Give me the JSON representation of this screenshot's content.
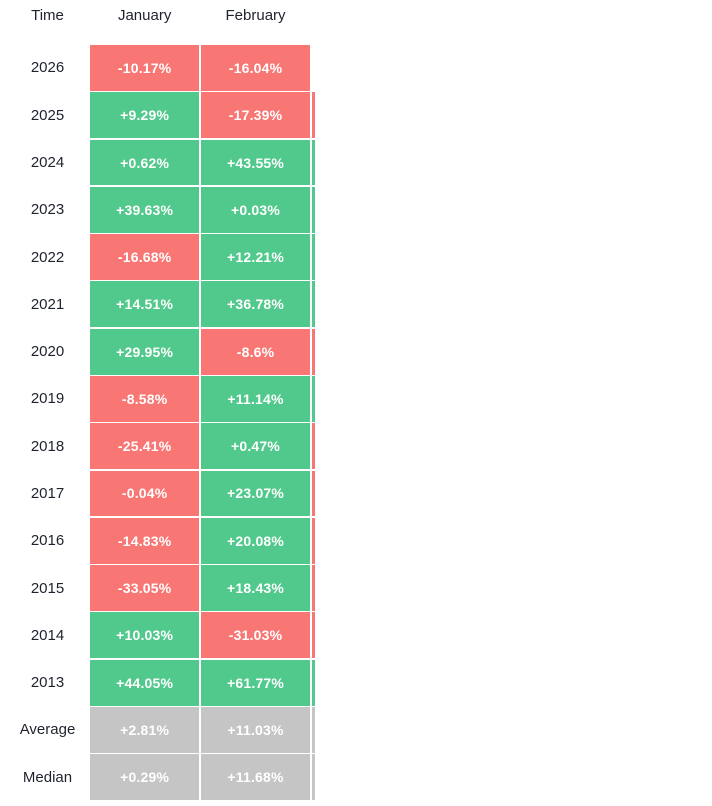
{
  "colors": {
    "positive": "#52c98c",
    "negative": "#f87673",
    "neutral": "#c5c5c5",
    "label_text": "#1e222d",
    "cell_text": "#ffffff",
    "background": "#ffffff"
  },
  "header": {
    "time_label": "Time",
    "columns": [
      "January",
      "February"
    ]
  },
  "rows": [
    {
      "label": "2026",
      "cells": [
        {
          "text": "-10.17%",
          "state": "negative"
        },
        {
          "text": "-16.04%",
          "state": "negative"
        }
      ],
      "next": {
        "state": "none"
      }
    },
    {
      "label": "2025",
      "cells": [
        {
          "text": "+9.29%",
          "state": "positive"
        },
        {
          "text": "-17.39%",
          "state": "negative"
        }
      ],
      "next": {
        "state": "negative"
      }
    },
    {
      "label": "2024",
      "cells": [
        {
          "text": "+0.62%",
          "state": "positive"
        },
        {
          "text": "+43.55%",
          "state": "positive"
        }
      ],
      "next": {
        "state": "positive"
      }
    },
    {
      "label": "2023",
      "cells": [
        {
          "text": "+39.63%",
          "state": "positive"
        },
        {
          "text": "+0.03%",
          "state": "positive"
        }
      ],
      "next": {
        "state": "positive"
      }
    },
    {
      "label": "2022",
      "cells": [
        {
          "text": "-16.68%",
          "state": "negative"
        },
        {
          "text": "+12.21%",
          "state": "positive"
        }
      ],
      "next": {
        "state": "positive"
      }
    },
    {
      "label": "2021",
      "cells": [
        {
          "text": "+14.51%",
          "state": "positive"
        },
        {
          "text": "+36.78%",
          "state": "positive"
        }
      ],
      "next": {
        "state": "positive"
      }
    },
    {
      "label": "2020",
      "cells": [
        {
          "text": "+29.95%",
          "state": "positive"
        },
        {
          "text": "-8.6%",
          "state": "negative"
        }
      ],
      "next": {
        "state": "negative"
      }
    },
    {
      "label": "2019",
      "cells": [
        {
          "text": "-8.58%",
          "state": "negative"
        },
        {
          "text": "+11.14%",
          "state": "positive"
        }
      ],
      "next": {
        "state": "positive"
      }
    },
    {
      "label": "2018",
      "cells": [
        {
          "text": "-25.41%",
          "state": "negative"
        },
        {
          "text": "+0.47%",
          "state": "positive"
        }
      ],
      "next": {
        "state": "negative"
      }
    },
    {
      "label": "2017",
      "cells": [
        {
          "text": "-0.04%",
          "state": "negative"
        },
        {
          "text": "+23.07%",
          "state": "positive"
        }
      ],
      "next": {
        "state": "negative"
      }
    },
    {
      "label": "2016",
      "cells": [
        {
          "text": "-14.83%",
          "state": "negative"
        },
        {
          "text": "+20.08%",
          "state": "positive"
        }
      ],
      "next": {
        "state": "negative"
      }
    },
    {
      "label": "2015",
      "cells": [
        {
          "text": "-33.05%",
          "state": "negative"
        },
        {
          "text": "+18.43%",
          "state": "positive"
        }
      ],
      "next": {
        "state": "negative"
      }
    },
    {
      "label": "2014",
      "cells": [
        {
          "text": "+10.03%",
          "state": "positive"
        },
        {
          "text": "-31.03%",
          "state": "negative"
        }
      ],
      "next": {
        "state": "negative"
      }
    },
    {
      "label": "2013",
      "cells": [
        {
          "text": "+44.05%",
          "state": "positive"
        },
        {
          "text": "+61.77%",
          "state": "positive"
        }
      ],
      "next": {
        "state": "positive"
      }
    },
    {
      "label": "Average",
      "cells": [
        {
          "text": "+2.81%",
          "state": "neutral"
        },
        {
          "text": "+11.03%",
          "state": "neutral"
        }
      ],
      "next": {
        "state": "neutral"
      }
    },
    {
      "label": "Median",
      "cells": [
        {
          "text": "+0.29%",
          "state": "neutral"
        },
        {
          "text": "+11.68%",
          "state": "neutral"
        }
      ],
      "next": {
        "state": "neutral"
      }
    }
  ],
  "chart_data": {
    "type": "heatmap",
    "columns": [
      "January",
      "February"
    ],
    "row_labels": [
      "2026",
      "2025",
      "2024",
      "2023",
      "2022",
      "2021",
      "2020",
      "2019",
      "2018",
      "2017",
      "2016",
      "2015",
      "2014",
      "2013",
      "Average",
      "Median"
    ],
    "values": [
      [
        -10.17,
        -16.04
      ],
      [
        9.29,
        -17.39
      ],
      [
        0.62,
        43.55
      ],
      [
        39.63,
        0.03
      ],
      [
        -16.68,
        12.21
      ],
      [
        14.51,
        36.78
      ],
      [
        29.95,
        -8.6
      ],
      [
        -8.58,
        11.14
      ],
      [
        -25.41,
        0.47
      ],
      [
        -0.04,
        23.07
      ],
      [
        -14.83,
        20.08
      ],
      [
        -33.05,
        18.43
      ],
      [
        10.03,
        -31.03
      ],
      [
        44.05,
        61.77
      ],
      [
        2.81,
        11.03
      ],
      [
        0.29,
        11.68
      ]
    ],
    "unit": "%",
    "legend_position": "none",
    "grid": false,
    "positive_color": "#52c98c",
    "negative_color": "#f87673",
    "neutral_color": "#c5c5c5"
  }
}
